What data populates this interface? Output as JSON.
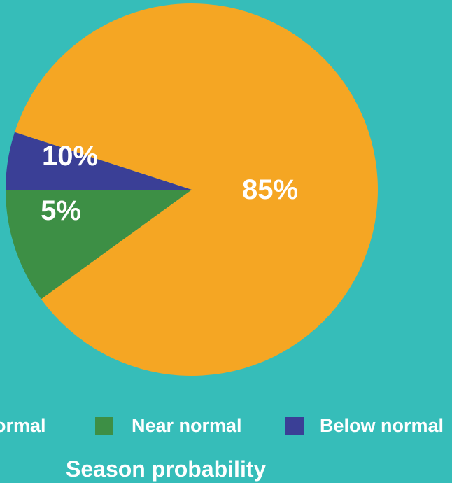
{
  "chart_data": {
    "type": "pie",
    "title": "Season probability",
    "slices": [
      {
        "name": "Above normal",
        "value": 85,
        "label": "85%",
        "color": "#f5a623"
      },
      {
        "name": "Near normal",
        "value": 10,
        "label": "10%",
        "color": "#3d8f45"
      },
      {
        "name": "Below normal",
        "value": 5,
        "label": "5%",
        "color": "#3a3f96"
      }
    ],
    "legend": {
      "placement": "bottom",
      "items": [
        "ormal",
        "Near normal",
        "Below normal"
      ]
    }
  },
  "colors": {
    "background": "#36bdb9",
    "text": "#ffffff"
  }
}
